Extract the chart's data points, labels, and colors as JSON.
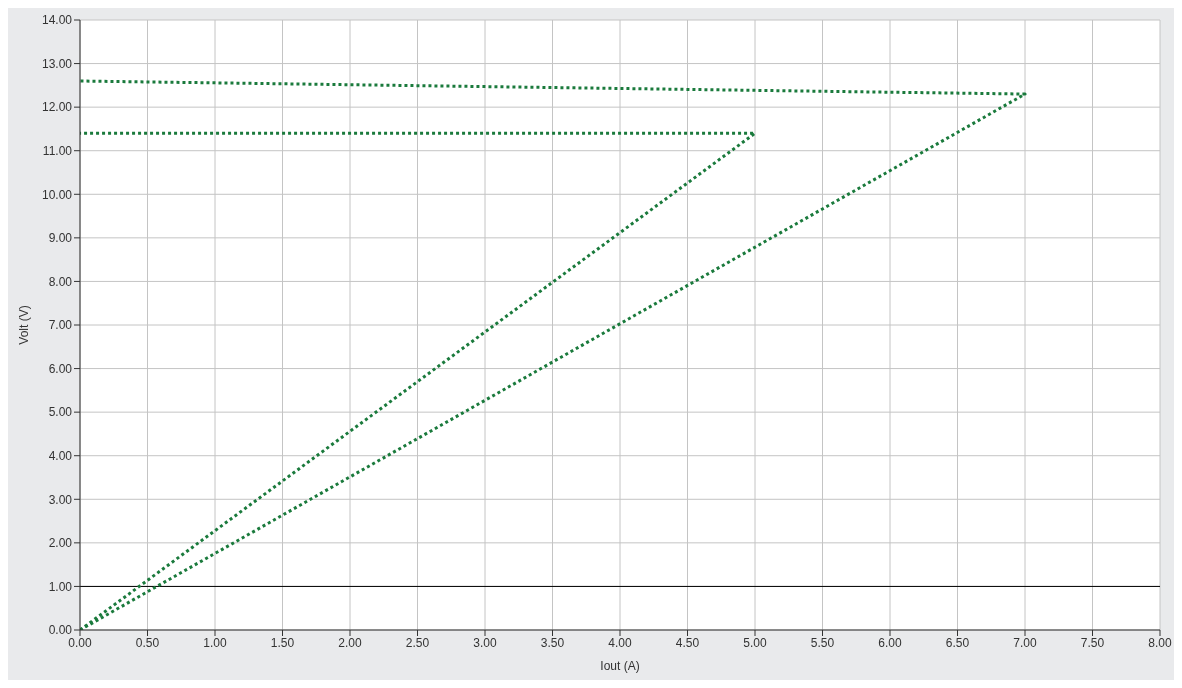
{
  "chart_data": {
    "type": "line",
    "xlabel": "Iout (A)",
    "ylabel": "Volt (V)",
    "series": [
      {
        "color": "#1a7a3c",
        "x": [
          0,
          5,
          0
        ],
        "values": [
          0,
          11.4,
          11.4
        ]
      },
      {
        "color": "#1a7a3c",
        "x": [
          0,
          7,
          0
        ],
        "values": [
          0,
          12.3,
          12.6
        ]
      }
    ],
    "xlim": [
      0,
      8
    ],
    "ylim": [
      0,
      14
    ],
    "xticks": [
      {
        "value": 0,
        "label": "0.00"
      },
      {
        "value": 0.5,
        "label": "0.50"
      },
      {
        "value": 1,
        "label": "1.00"
      },
      {
        "value": 1.5,
        "label": "1.50"
      },
      {
        "value": 2,
        "label": "2.00"
      },
      {
        "value": 2.5,
        "label": "2.50"
      },
      {
        "value": 3,
        "label": "3.00"
      },
      {
        "value": 3.5,
        "label": "3.50"
      },
      {
        "value": 4,
        "label": "4.00"
      },
      {
        "value": 4.5,
        "label": "4.50"
      },
      {
        "value": 5,
        "label": "5.00"
      },
      {
        "value": 5.5,
        "label": "5.50"
      },
      {
        "value": 6,
        "label": "6.00"
      },
      {
        "value": 6.5,
        "label": "6.50"
      },
      {
        "value": 7,
        "label": "7.00"
      },
      {
        "value": 7.5,
        "label": "7.50"
      },
      {
        "value": 8,
        "label": "8.00"
      }
    ],
    "yticks": [
      {
        "value": 0,
        "label": "0.00"
      },
      {
        "value": 1,
        "label": "1.00"
      },
      {
        "value": 2,
        "label": "2.00"
      },
      {
        "value": 3,
        "label": "3.00"
      },
      {
        "value": 4,
        "label": "4.00"
      },
      {
        "value": 5,
        "label": "5.00"
      },
      {
        "value": 6,
        "label": "6.00"
      },
      {
        "value": 7,
        "label": "7.00"
      },
      {
        "value": 8,
        "label": "8.00"
      },
      {
        "value": 9,
        "label": "9.00"
      },
      {
        "value": 10,
        "label": "10.00"
      },
      {
        "value": 11,
        "label": "11.00"
      },
      {
        "value": 12,
        "label": "12.00"
      },
      {
        "value": 13,
        "label": "13.00"
      },
      {
        "value": 14,
        "label": "14.00"
      }
    ],
    "ref_lines": [
      {
        "axis": "y",
        "value": 1,
        "color": "#000000"
      }
    ],
    "grid": true,
    "marker": "none",
    "line_style": "dotted"
  }
}
